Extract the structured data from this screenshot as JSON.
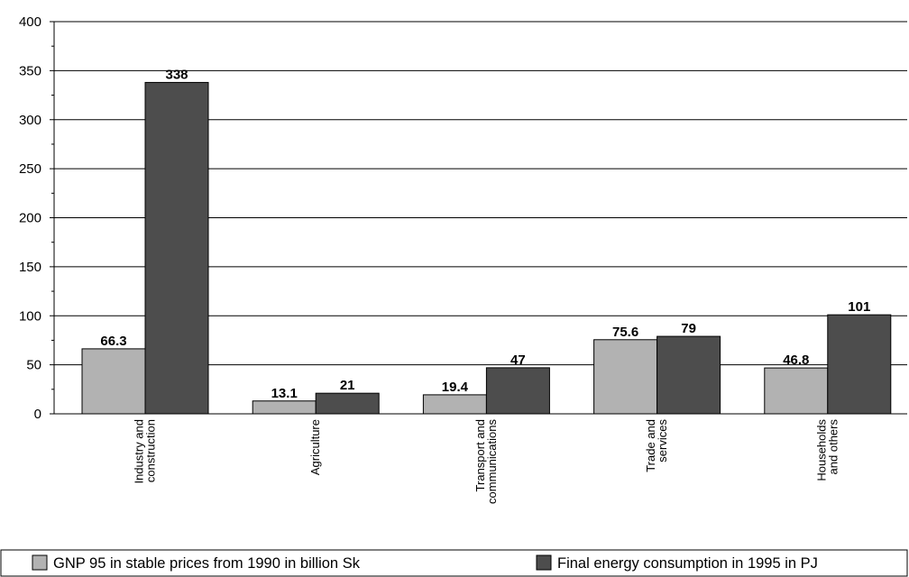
{
  "chart_data": {
    "type": "bar",
    "categories": [
      [
        "Industry and",
        "construction"
      ],
      [
        "Agriculture"
      ],
      [
        "Transport and",
        "communications"
      ],
      [
        "Trade and",
        "services"
      ],
      [
        "Households",
        "and others"
      ]
    ],
    "series": [
      {
        "name": "GNP 95 in stable prices from 1990 in billion Sk",
        "values": [
          66.3,
          13.1,
          19.4,
          75.6,
          46.8
        ],
        "labels": [
          "66.3",
          "13.1",
          "19.4",
          "75.6",
          "46.8"
        ],
        "color": "#b2b2b2"
      },
      {
        "name": "Final energy consumption in 1995 in PJ",
        "values": [
          338,
          21,
          47,
          79,
          101
        ],
        "labels": [
          "338",
          "21",
          "47",
          "79",
          "101"
        ],
        "color": "#4d4d4d"
      }
    ],
    "ylim": [
      0,
      400
    ],
    "yticks": [
      0,
      50,
      100,
      150,
      200,
      250,
      300,
      350,
      400
    ],
    "grid": true,
    "legend_position": "bottom"
  }
}
